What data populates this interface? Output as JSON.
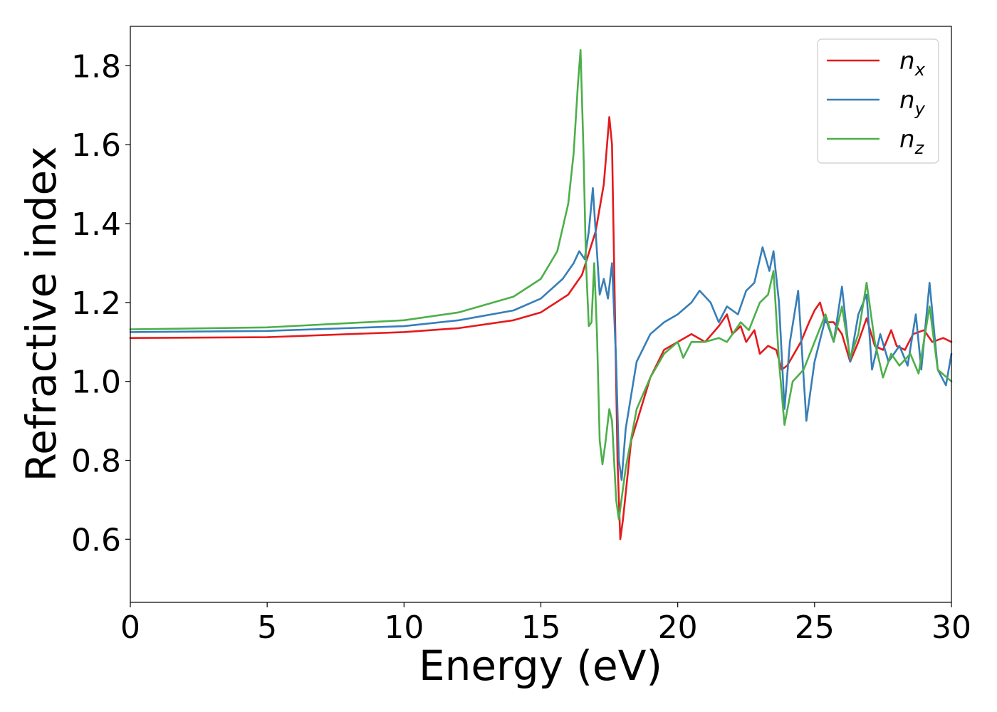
{
  "chart_data": {
    "type": "line",
    "xlabel": "Energy (eV)",
    "ylabel": "Refractive index",
    "xlim": [
      0,
      30
    ],
    "ylim": [
      0.44,
      1.9
    ],
    "xticks": [
      0,
      5,
      10,
      15,
      20,
      25,
      30
    ],
    "xtick_labels": [
      "0",
      "5",
      "10",
      "15",
      "20",
      "25",
      "30"
    ],
    "yticks": [
      0.6,
      0.8,
      1.0,
      1.2,
      1.4,
      1.6,
      1.8
    ],
    "ytick_labels": [
      "0.6",
      "0.8",
      "1.0",
      "1.2",
      "1.4",
      "1.6",
      "1.8"
    ],
    "grid": false,
    "legend_position": "top-right",
    "series": [
      {
        "name": "n",
        "subscript": "x",
        "color": "#e41a1c",
        "points": [
          [
            0,
            1.11
          ],
          [
            5,
            1.112
          ],
          [
            10,
            1.125
          ],
          [
            12,
            1.135
          ],
          [
            14,
            1.155
          ],
          [
            15,
            1.175
          ],
          [
            16,
            1.22
          ],
          [
            16.5,
            1.27
          ],
          [
            17,
            1.38
          ],
          [
            17.3,
            1.5
          ],
          [
            17.5,
            1.67
          ],
          [
            17.6,
            1.6
          ],
          [
            17.7,
            1.2
          ],
          [
            17.8,
            0.8
          ],
          [
            17.9,
            0.6
          ],
          [
            18,
            0.65
          ],
          [
            18.3,
            0.85
          ],
          [
            19,
            1.01
          ],
          [
            19.5,
            1.08
          ],
          [
            20,
            1.1
          ],
          [
            20.5,
            1.12
          ],
          [
            21,
            1.1
          ],
          [
            21.5,
            1.14
          ],
          [
            21.8,
            1.17
          ],
          [
            22,
            1.12
          ],
          [
            22.3,
            1.14
          ],
          [
            22.5,
            1.1
          ],
          [
            22.8,
            1.13
          ],
          [
            23,
            1.07
          ],
          [
            23.3,
            1.09
          ],
          [
            23.6,
            1.08
          ],
          [
            23.8,
            1.03
          ],
          [
            24,
            1.04
          ],
          [
            24.5,
            1.1
          ],
          [
            24.8,
            1.15
          ],
          [
            25,
            1.18
          ],
          [
            25.2,
            1.2
          ],
          [
            25.4,
            1.15
          ],
          [
            25.7,
            1.15
          ],
          [
            26,
            1.12
          ],
          [
            26.3,
            1.05
          ],
          [
            26.6,
            1.1
          ],
          [
            26.9,
            1.16
          ],
          [
            27.2,
            1.09
          ],
          [
            27.5,
            1.08
          ],
          [
            27.8,
            1.13
          ],
          [
            28,
            1.09
          ],
          [
            28.3,
            1.08
          ],
          [
            28.6,
            1.12
          ],
          [
            29,
            1.13
          ],
          [
            29.3,
            1.1
          ],
          [
            29.7,
            1.11
          ],
          [
            30,
            1.1
          ]
        ]
      },
      {
        "name": "n",
        "subscript": "y",
        "color": "#377eb8",
        "points": [
          [
            0,
            1.125
          ],
          [
            5,
            1.128
          ],
          [
            10,
            1.14
          ],
          [
            12,
            1.155
          ],
          [
            14,
            1.18
          ],
          [
            15,
            1.21
          ],
          [
            15.8,
            1.26
          ],
          [
            16.2,
            1.3
          ],
          [
            16.4,
            1.33
          ],
          [
            16.6,
            1.31
          ],
          [
            16.75,
            1.38
          ],
          [
            16.9,
            1.49
          ],
          [
            17,
            1.38
          ],
          [
            17.15,
            1.22
          ],
          [
            17.3,
            1.26
          ],
          [
            17.45,
            1.21
          ],
          [
            17.6,
            1.3
          ],
          [
            17.75,
            1.05
          ],
          [
            17.85,
            0.8
          ],
          [
            17.95,
            0.75
          ],
          [
            18.1,
            0.88
          ],
          [
            18.5,
            1.05
          ],
          [
            19,
            1.12
          ],
          [
            19.5,
            1.15
          ],
          [
            20,
            1.17
          ],
          [
            20.5,
            1.2
          ],
          [
            20.8,
            1.23
          ],
          [
            21.2,
            1.2
          ],
          [
            21.5,
            1.15
          ],
          [
            21.8,
            1.19
          ],
          [
            22.2,
            1.17
          ],
          [
            22.5,
            1.23
          ],
          [
            22.8,
            1.25
          ],
          [
            23.1,
            1.34
          ],
          [
            23.35,
            1.28
          ],
          [
            23.5,
            1.33
          ],
          [
            23.7,
            1.2
          ],
          [
            23.9,
            0.93
          ],
          [
            24.1,
            1.1
          ],
          [
            24.4,
            1.23
          ],
          [
            24.7,
            0.9
          ],
          [
            25,
            1.05
          ],
          [
            25.4,
            1.16
          ],
          [
            25.7,
            1.1
          ],
          [
            26,
            1.24
          ],
          [
            26.3,
            1.05
          ],
          [
            26.6,
            1.17
          ],
          [
            26.9,
            1.22
          ],
          [
            27.1,
            1.03
          ],
          [
            27.4,
            1.12
          ],
          [
            27.7,
            1.05
          ],
          [
            28.1,
            1.09
          ],
          [
            28.4,
            1.04
          ],
          [
            28.7,
            1.17
          ],
          [
            28.9,
            1.03
          ],
          [
            29.2,
            1.25
          ],
          [
            29.5,
            1.03
          ],
          [
            29.8,
            0.99
          ],
          [
            30,
            1.07
          ]
        ]
      },
      {
        "name": "n",
        "subscript": "z",
        "color": "#4daf4a",
        "points": [
          [
            0,
            1.132
          ],
          [
            5,
            1.137
          ],
          [
            10,
            1.155
          ],
          [
            12,
            1.175
          ],
          [
            14,
            1.215
          ],
          [
            15,
            1.26
          ],
          [
            15.6,
            1.33
          ],
          [
            16,
            1.45
          ],
          [
            16.2,
            1.58
          ],
          [
            16.35,
            1.75
          ],
          [
            16.45,
            1.84
          ],
          [
            16.55,
            1.6
          ],
          [
            16.65,
            1.3
          ],
          [
            16.75,
            1.14
          ],
          [
            16.85,
            1.15
          ],
          [
            16.95,
            1.3
          ],
          [
            17.05,
            1.12
          ],
          [
            17.15,
            0.85
          ],
          [
            17.25,
            0.79
          ],
          [
            17.35,
            0.84
          ],
          [
            17.5,
            0.93
          ],
          [
            17.6,
            0.9
          ],
          [
            17.75,
            0.7
          ],
          [
            17.85,
            0.65
          ],
          [
            18.1,
            0.78
          ],
          [
            18.5,
            0.93
          ],
          [
            19,
            1.01
          ],
          [
            19.5,
            1.07
          ],
          [
            20,
            1.1
          ],
          [
            20.2,
            1.06
          ],
          [
            20.5,
            1.1
          ],
          [
            21,
            1.1
          ],
          [
            21.5,
            1.11
          ],
          [
            21.8,
            1.1
          ],
          [
            22,
            1.12
          ],
          [
            22.3,
            1.15
          ],
          [
            22.6,
            1.13
          ],
          [
            23,
            1.2
          ],
          [
            23.3,
            1.22
          ],
          [
            23.5,
            1.28
          ],
          [
            23.7,
            1.05
          ],
          [
            23.9,
            0.89
          ],
          [
            24.2,
            1.0
          ],
          [
            24.6,
            1.03
          ],
          [
            25,
            1.1
          ],
          [
            25.4,
            1.17
          ],
          [
            25.7,
            1.1
          ],
          [
            26,
            1.19
          ],
          [
            26.3,
            1.06
          ],
          [
            26.6,
            1.12
          ],
          [
            26.9,
            1.25
          ],
          [
            27.2,
            1.1
          ],
          [
            27.5,
            1.01
          ],
          [
            27.8,
            1.07
          ],
          [
            28.1,
            1.04
          ],
          [
            28.5,
            1.07
          ],
          [
            28.8,
            1.02
          ],
          [
            29.2,
            1.19
          ],
          [
            29.5,
            1.03
          ],
          [
            30,
            1.0
          ]
        ]
      }
    ]
  }
}
